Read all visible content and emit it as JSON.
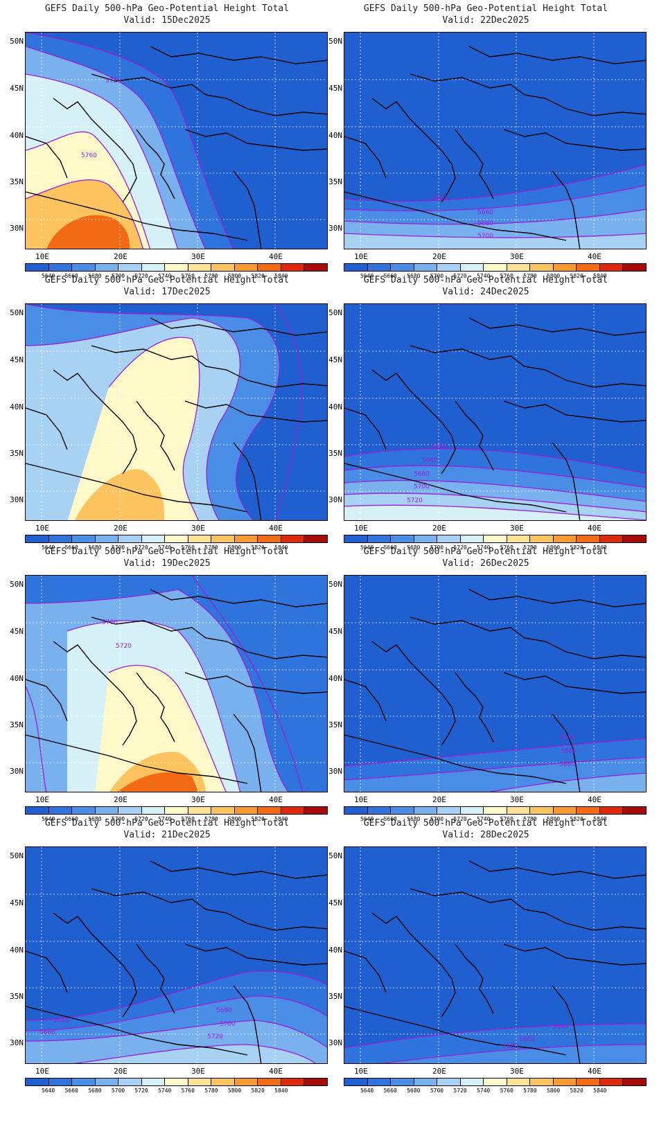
{
  "panels": [
    {
      "title": "GEFS Daily 500-hPa Geo-Potential Height Total",
      "valid": "Valid:  15Dec2025",
      "contour_labels": [
        "5720",
        "5760"
      ]
    },
    {
      "title": "GEFS Daily 500-hPa Geo-Potential Height Total",
      "valid": "Valid:  22Dec2025",
      "contour_labels": [
        "5640",
        "5660",
        "5680",
        "5700"
      ]
    },
    {
      "title": "GEFS Daily 500-hPa Geo-Potential Height Total",
      "valid": "Valid:  17Dec2025",
      "contour_labels": []
    },
    {
      "title": "GEFS Daily 500-hPa Geo-Potential Height Total",
      "valid": "Valid:  24Dec2025",
      "contour_labels": [
        "5640",
        "5660",
        "5680",
        "5700",
        "5720"
      ]
    },
    {
      "title": "GEFS Daily 500-hPa Geo-Potential Height Total",
      "valid": "Valid:  19Dec2025",
      "contour_labels": [
        "5700",
        "5720"
      ]
    },
    {
      "title": "GEFS Daily 500-hPa Geo-Potential Height Total",
      "valid": "Valid:  26Dec2025",
      "contour_labels": [
        "5640",
        "5660",
        "5680"
      ]
    },
    {
      "title": "GEFS Daily 500-hPa Geo-Potential Height Total",
      "valid": "Valid:  21Dec2025",
      "contour_labels": [
        "5640",
        "5660",
        "5680",
        "5700",
        "5720"
      ]
    },
    {
      "title": "GEFS Daily 500-hPa Geo-Potential Height Total",
      "valid": "Valid:  28Dec2025",
      "contour_labels": [
        "5640",
        "5660",
        "5680"
      ]
    }
  ],
  "axes": {
    "lat_labels": [
      "50N",
      "45N",
      "40N",
      "35N",
      "30N"
    ],
    "lon_labels": [
      "10E",
      "20E",
      "30E",
      "40E"
    ]
  },
  "colorbar": {
    "labels": [
      "5640",
      "5660",
      "5680",
      "5700",
      "5720",
      "5740",
      "5760",
      "5780",
      "5800",
      "5820",
      "5840"
    ],
    "colors": [
      "#1f5fcf",
      "#2f73dc",
      "#4a8de6",
      "#79b0ee",
      "#a8d2f4",
      "#d6f0f8",
      "#fff8c8",
      "#fde495",
      "#fcc35e",
      "#f99a30",
      "#f26a14",
      "#dd2a0a",
      "#a80c0a"
    ]
  },
  "colors": {
    "contour": "#9a1fd6",
    "label": "#9a1fd6",
    "coast": "#000000",
    "grid": "#ffffff"
  }
}
